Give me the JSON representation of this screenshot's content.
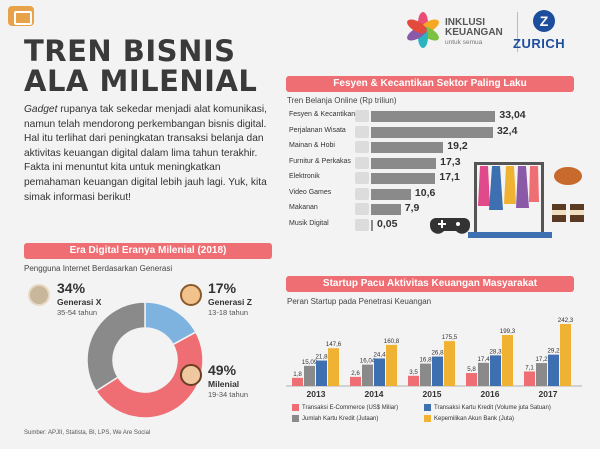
{
  "header": {
    "title_line1": "TREN BISNIS",
    "title_line2": "ALA MILENIAL",
    "intro_italic": "Gadget",
    "intro_rest": " rupanya tak sekedar menjadi alat komunikasi, namun telah mendorong perkembangan bisnis digital. Hal itu terlihat dari peningkatan transaksi belanja dan aktivitas keuangan digital dalam lima tahun terakhir. Fakta ini menuntut kita untuk meningkatkan pemahaman keuangan digital lebih jauh lagi. Yuk, kita simak informasi berikut!"
  },
  "logos": {
    "inklusi": "INKLUSI",
    "keuangan": "KEUANGAN",
    "tagline": "untuk semua",
    "zurich_letter": "Z",
    "zurich": "ZURICH"
  },
  "colors": {
    "banner": "#ee6e73",
    "gen_x": "#8a8a8a",
    "gen_z": "#7fb3df",
    "milenial": "#ee6e73",
    "ecommerce": "#ee6e73",
    "kartu_kredit": "#8a8a8a",
    "transaksi_kartu_kredit": "#3e6fb0",
    "akun_bank": "#f0b233"
  },
  "section_generasi": {
    "banner": "Era Digital Eranya Milenial (2018)",
    "subtitle": "Pengguna Internet Berdasarkan Generasi"
  },
  "section_fesyen": {
    "banner": "Fesyen & Kecantikan Sektor Paling Laku",
    "subtitle": "Tren Belanja Online (Rp triliun)"
  },
  "section_startup": {
    "banner": "Startup Pacu Aktivitas Keuangan Masyarakat",
    "subtitle": "Peran Startup pada Penetrasi Keuangan"
  },
  "source": "Sumber: APJII, Statista, BI, LPS, We Are Social",
  "chart_data": [
    {
      "type": "pie",
      "title": "Pengguna Internet Berdasarkan Generasi",
      "slices": [
        {
          "label": "Generasi X",
          "pct_label": "34%",
          "age": "35-54 tahun",
          "value": 34,
          "icon": "gen-x-avatar-icon"
        },
        {
          "label": "Generasi Z",
          "pct_label": "17%",
          "age": "13-18 tahun",
          "value": 17,
          "icon": "gen-z-avatar-icon"
        },
        {
          "label": "Milenial",
          "pct_label": "49%",
          "age": "19-34 tahun",
          "value": 49,
          "icon": "milenial-avatar-icon"
        }
      ]
    },
    {
      "type": "bar",
      "orientation": "horizontal",
      "title": "Tren Belanja Online (Rp triliun)",
      "xlim": [
        0,
        34
      ],
      "categories": [
        "Fesyen & Kecantikan",
        "Perjalanan Wisata",
        "Mainan & Hobi",
        "Furnitur & Perkakas",
        "Elektronik",
        "Video Games",
        "Makanan",
        "Musik Digital"
      ],
      "values": [
        33.04,
        32.4,
        19.2,
        17.3,
        17.1,
        10.6,
        7.9,
        0.05
      ],
      "value_labels": [
        "33,04",
        "32,4",
        "19,2",
        "17,3",
        "17,1",
        "10,6",
        "7,9",
        "0,05"
      ],
      "icons": [
        "dress-icon",
        "car-icon",
        "toy-icon",
        "chair-icon",
        "monitor-icon",
        "gamepad-icon",
        "food-icon",
        "music-icon"
      ]
    },
    {
      "type": "bar",
      "title": "Peran Startup pada Penetrasi Keuangan",
      "categories": [
        "2013",
        "2014",
        "2015",
        "2016",
        "2017"
      ],
      "ylim": [
        0,
        250
      ],
      "legend_position": "bottom",
      "series": [
        {
          "name": "Transaksi E-Commerce (US$ Miliar)",
          "values": [
            1.8,
            2.6,
            3.5,
            5.8,
            7.1
          ],
          "labels": [
            "1,8",
            "2,6",
            "3,5",
            "5,8",
            "7,1"
          ]
        },
        {
          "name": "Jumlah Kartu Kredit (Jutaan)",
          "values": [
            15.09,
            16.04,
            16.8,
            17.4,
            17.2
          ],
          "labels": [
            "15,09",
            "16,04",
            "16,8",
            "17,4",
            "17,2"
          ]
        },
        {
          "name": "Transaksi Kartu Kredit (Volume juta Satuan)",
          "values": [
            21.8,
            24.4,
            26.8,
            28.3,
            29.2
          ],
          "labels": [
            "21,8",
            "24,4",
            "26,8",
            "28,3",
            "29,2"
          ]
        },
        {
          "name": "Kepemilikan Akun Bank (Juta)",
          "values": [
            147.6,
            160.8,
            175.5,
            199.3,
            242.3
          ],
          "labels": [
            "147,6",
            "160,8",
            "175,5",
            "199,3",
            "242,3"
          ]
        }
      ]
    }
  ]
}
